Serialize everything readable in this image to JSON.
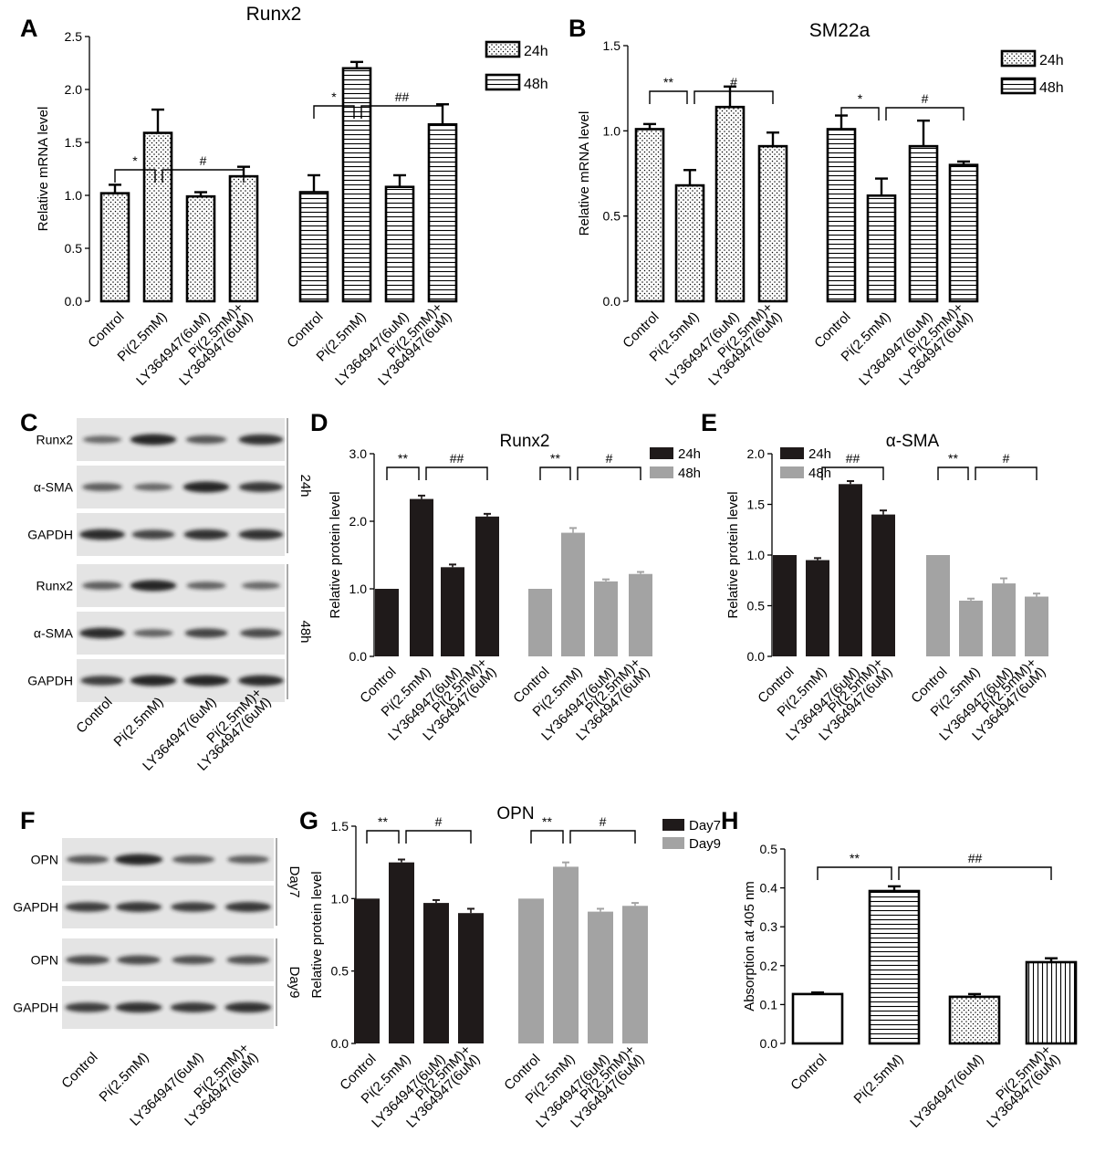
{
  "panels": {
    "A": {
      "letter": "A"
    },
    "B": {
      "letter": "B"
    },
    "C": {
      "letter": "C"
    },
    "D": {
      "letter": "D"
    },
    "E": {
      "letter": "E"
    },
    "F": {
      "letter": "F"
    },
    "G": {
      "letter": "G"
    },
    "H": {
      "letter": "H"
    }
  },
  "colors": {
    "black": "#000000",
    "dark_bar": "#1f1a1a",
    "gray_bar": "#a3a3a3",
    "blot_band": "#1a1a1a",
    "blot_bg": "#e4e4e4"
  },
  "blot_C": {
    "lane_labels": [
      "Control",
      "Pi(2.5mM)",
      "LY364947(6uM)",
      "Pi(2.5mM)+\nLY364947(6uM)"
    ],
    "groups": [
      {
        "label": "24h",
        "rows": [
          {
            "name": "Runx2",
            "intensities": [
              0.45,
              1.0,
              0.6,
              0.9
            ]
          },
          {
            "name": "α-SMA",
            "intensities": [
              0.55,
              0.45,
              1.0,
              0.85
            ]
          },
          {
            "name": "GAPDH",
            "intensities": [
              0.95,
              0.75,
              0.9,
              0.9
            ]
          }
        ]
      },
      {
        "label": "48h",
        "rows": [
          {
            "name": "Runx2",
            "intensities": [
              0.55,
              1.0,
              0.5,
              0.45
            ]
          },
          {
            "name": "α-SMA",
            "intensities": [
              0.95,
              0.5,
              0.75,
              0.7
            ]
          },
          {
            "name": "GAPDH",
            "intensities": [
              0.8,
              1.0,
              1.0,
              0.95
            ]
          }
        ]
      }
    ]
  },
  "blot_F": {
    "lane_labels": [
      "Control",
      "Pi(2.5mM)",
      "LY364947(6uM)",
      "Pi(2.5mM)+\nLY364947(6uM)"
    ],
    "groups": [
      {
        "label": "Day7",
        "rows": [
          {
            "name": "OPN",
            "intensities": [
              0.6,
              1.0,
              0.6,
              0.55
            ]
          },
          {
            "name": "GAPDH",
            "intensities": [
              0.8,
              0.85,
              0.8,
              0.85
            ]
          }
        ]
      },
      {
        "label": "Day9",
        "rows": [
          {
            "name": "OPN",
            "intensities": [
              0.7,
              0.7,
              0.65,
              0.65
            ]
          },
          {
            "name": "GAPDH",
            "intensities": [
              0.8,
              0.9,
              0.85,
              0.9
            ]
          }
        ]
      }
    ]
  },
  "chart_data": [
    {
      "id": "A",
      "type": "bar",
      "title": "Runx2",
      "ylabel": "Relative mRNA level",
      "ylim": [
        0,
        2.5
      ],
      "yticks": [
        "0.0",
        "0.5",
        "1.0",
        "1.5",
        "2.0",
        "2.5"
      ],
      "categories": [
        "Control",
        "Pi(2.5mM)",
        "LY364947(6uM)",
        "Pi(2.5mM)+\nLY364947(6uM)"
      ],
      "series": [
        {
          "name": "24h",
          "pattern": "dots",
          "values": [
            1.02,
            1.59,
            0.99,
            1.18
          ],
          "errors": [
            0.08,
            0.22,
            0.04,
            0.09
          ]
        },
        {
          "name": "48h",
          "pattern": "hlines",
          "values": [
            1.03,
            2.2,
            1.08,
            1.67
          ],
          "errors": [
            0.16,
            0.06,
            0.11,
            0.19
          ]
        }
      ],
      "legend": "top-right",
      "annotations": [
        {
          "series": 0,
          "from": 0,
          "to": 1,
          "text": "*"
        },
        {
          "series": 0,
          "from": 1,
          "to": 3,
          "text": "#"
        },
        {
          "series": 1,
          "from": 0,
          "to": 1,
          "text": "*"
        },
        {
          "series": 1,
          "from": 1,
          "to": 3,
          "text": "##"
        }
      ]
    },
    {
      "id": "B",
      "type": "bar",
      "title": "SM22a",
      "ylabel": "Relative mRNA level",
      "ylim": [
        0,
        1.5
      ],
      "yticks": [
        "0.0",
        "0.5",
        "1.0",
        "1.5"
      ],
      "categories": [
        "Control",
        "Pi(2.5mM)",
        "LY364947(6uM)",
        "Pi(2.5mM)+\nLY364947(6uM)"
      ],
      "series": [
        {
          "name": "24h",
          "pattern": "dots",
          "values": [
            1.01,
            0.68,
            1.14,
            0.91
          ],
          "errors": [
            0.03,
            0.09,
            0.12,
            0.08
          ]
        },
        {
          "name": "48h",
          "pattern": "hlines",
          "values": [
            1.01,
            0.62,
            0.91,
            0.8
          ],
          "errors": [
            0.08,
            0.1,
            0.15,
            0.02
          ]
        }
      ],
      "legend": "top-right",
      "annotations": [
        {
          "series": 0,
          "from": 0,
          "to": 1,
          "text": "**"
        },
        {
          "series": 0,
          "from": 1,
          "to": 3,
          "text": "#"
        },
        {
          "series": 1,
          "from": 0,
          "to": 1,
          "text": "*"
        },
        {
          "series": 1,
          "from": 1,
          "to": 3,
          "text": "#"
        }
      ]
    },
    {
      "id": "D",
      "type": "bar",
      "title": "Runx2",
      "ylabel": "Relative protein level",
      "ylim": [
        0,
        3.0
      ],
      "yticks": [
        "0.0",
        "1.0",
        "2.0",
        "3.0"
      ],
      "categories": [
        "Control",
        "Pi(2.5mM)",
        "LY364947(6uM)",
        "Pi(2.5mM)+\nLY364947(6uM)"
      ],
      "series": [
        {
          "name": "24h",
          "pattern": "dark",
          "values": [
            1.0,
            2.33,
            1.32,
            2.07
          ],
          "errors": [
            0,
            0.05,
            0.04,
            0.04
          ]
        },
        {
          "name": "48h",
          "pattern": "gray",
          "values": [
            1.0,
            1.83,
            1.11,
            1.22
          ],
          "errors": [
            0,
            0.07,
            0.03,
            0.03
          ]
        }
      ],
      "legend": "top-right",
      "annotations": [
        {
          "series": 0,
          "from": 0,
          "to": 1,
          "text": "**"
        },
        {
          "series": 0,
          "from": 1,
          "to": 3,
          "text": "##"
        },
        {
          "series": 1,
          "from": 0,
          "to": 1,
          "text": "**"
        },
        {
          "series": 1,
          "from": 1,
          "to": 3,
          "text": "#"
        }
      ]
    },
    {
      "id": "E",
      "type": "bar",
      "title": "α-SMA",
      "ylabel": "Relative protein level",
      "ylim": [
        0,
        2.0
      ],
      "yticks": [
        "0.0",
        "0.5",
        "1.0",
        "1.5",
        "2.0"
      ],
      "categories": [
        "Control",
        "Pi(2.5mM)",
        "LY364947(6uM)",
        "Pi(2.5mM)+\nLY364947(6uM)"
      ],
      "series": [
        {
          "name": "24h",
          "pattern": "dark",
          "values": [
            1.0,
            0.95,
            1.7,
            1.4
          ],
          "errors": [
            0,
            0.02,
            0.03,
            0.04
          ]
        },
        {
          "name": "48h",
          "pattern": "gray",
          "values": [
            1.0,
            0.55,
            0.72,
            0.59
          ],
          "errors": [
            0,
            0.02,
            0.05,
            0.03
          ]
        }
      ],
      "legend": "top-left",
      "annotations": [
        {
          "series": 0,
          "from": 1,
          "to": 3,
          "text": "##"
        },
        {
          "series": 1,
          "from": 0,
          "to": 1,
          "text": "**"
        },
        {
          "series": 1,
          "from": 1,
          "to": 3,
          "text": "#"
        }
      ]
    },
    {
      "id": "G",
      "type": "bar",
      "title": "OPN",
      "ylabel": "Relative protein level",
      "ylim": [
        0,
        1.5
      ],
      "yticks": [
        "0.0",
        "0.5",
        "1.0",
        "1.5"
      ],
      "categories": [
        "Control",
        "Pi(2.5mM)",
        "LY364947(6uM)",
        "Pi(2.5mM)+\nLY364947(6uM)"
      ],
      "series": [
        {
          "name": "Day7",
          "pattern": "dark",
          "values": [
            1.0,
            1.25,
            0.97,
            0.9
          ],
          "errors": [
            0,
            0.02,
            0.02,
            0.03
          ]
        },
        {
          "name": "Day9",
          "pattern": "gray",
          "values": [
            1.0,
            1.22,
            0.91,
            0.95
          ],
          "errors": [
            0,
            0.03,
            0.02,
            0.02
          ]
        }
      ],
      "legend": "top-right",
      "annotations": [
        {
          "series": 0,
          "from": 0,
          "to": 1,
          "text": "**"
        },
        {
          "series": 0,
          "from": 1,
          "to": 3,
          "text": "#"
        },
        {
          "series": 1,
          "from": 0,
          "to": 1,
          "text": "**"
        },
        {
          "series": 1,
          "from": 1,
          "to": 3,
          "text": "#"
        }
      ]
    },
    {
      "id": "H",
      "type": "bar",
      "title": "",
      "ylabel": "Absorption at 405 nm",
      "ylim": [
        0,
        0.5
      ],
      "yticks": [
        "0.0",
        "0.1",
        "0.2",
        "0.3",
        "0.4",
        "0.5"
      ],
      "categories": [
        "Control",
        "Pi(2.5mM)",
        "LY364947(6uM)",
        "Pi(2.5mM)+\nLY364947(6uM)"
      ],
      "series": [
        {
          "patterns": [
            "white",
            "hlines",
            "dots",
            "vlines"
          ],
          "values": [
            0.127,
            0.392,
            0.12,
            0.209
          ],
          "errors": [
            0.004,
            0.012,
            0.007,
            0.01
          ]
        }
      ],
      "legend": "none",
      "annotations": [
        {
          "series": 0,
          "from": 0,
          "to": 1,
          "text": "**"
        },
        {
          "series": 0,
          "from": 1,
          "to": 3,
          "text": "##"
        }
      ]
    }
  ]
}
